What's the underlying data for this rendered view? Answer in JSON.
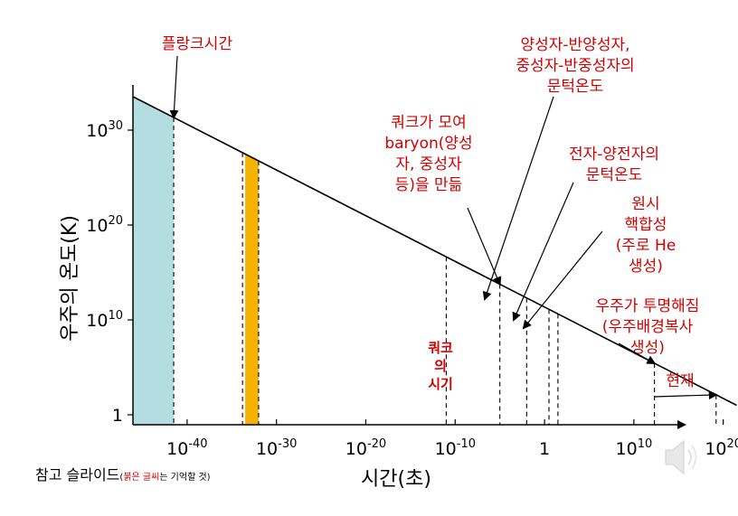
{
  "chart_data": {
    "type": "line",
    "x_scale": "log",
    "y_scale": "log",
    "xlabel": "시간(초)",
    "ylabel": "우주의 온도(K)",
    "x_ticks": [
      {
        "value": -40,
        "base": "10",
        "exp": "-40"
      },
      {
        "value": -30,
        "base": "10",
        "exp": "-30"
      },
      {
        "value": -20,
        "base": "10",
        "exp": "-20"
      },
      {
        "value": -10,
        "base": "10",
        "exp": "-10"
      },
      {
        "value": 0,
        "base": "1",
        "exp": ""
      },
      {
        "value": 10,
        "base": "10",
        "exp": "10"
      },
      {
        "value": 20,
        "base": "10",
        "exp": "20"
      }
    ],
    "y_ticks": [
      {
        "value": 0,
        "base": "1",
        "exp": ""
      },
      {
        "value": 10,
        "base": "10",
        "exp": "10"
      },
      {
        "value": 20,
        "base": "10",
        "exp": "20"
      },
      {
        "value": 30,
        "base": "10",
        "exp": "30"
      }
    ],
    "xlim": [
      -46,
      21.5
    ],
    "ylim": [
      -1,
      32
    ],
    "series": [
      {
        "x": [
          -46,
          21.5
        ],
        "y": [
          33.5,
          1.0
        ]
      }
    ],
    "shaded_regions": [
      {
        "x_from": -46,
        "x_to": -41.5,
        "color": "#b3dde0"
      },
      {
        "x_from": -33.5,
        "x_to": -32,
        "color": "#f5b300"
      }
    ],
    "events": [
      {
        "x": -41.5,
        "lines": [
          "플랑크시간"
        ]
      },
      {
        "x": -33.8,
        "lines": []
      },
      {
        "x": -32,
        "lines": []
      },
      {
        "x": -11,
        "lines": []
      },
      {
        "x": -5,
        "lines": [
          "쿼크가 모여",
          "baryon(양성",
          "자, 중성자",
          "등)을 만듦"
        ]
      },
      {
        "x": -2,
        "lines": [
          "양성자-반양성자,",
          "중성자-반중성자의",
          "문턱온도"
        ]
      },
      {
        "x": 0.5,
        "lines": [
          "전자-양전자의",
          "문턱온도"
        ]
      },
      {
        "x": 1.5,
        "lines": [
          "원시",
          "핵합성",
          "(주로 He",
          "생성)"
        ]
      },
      {
        "x": 12.3,
        "lines": [
          "우주가 투명해짐",
          "(우주배경복사",
          "생성)"
        ]
      },
      {
        "x": 19.2,
        "lines": [
          "현재"
        ]
      }
    ],
    "era_label": [
      "쿼크",
      "의",
      "시기"
    ]
  },
  "footnote": {
    "main": "참고 슬라이드",
    "paren_open": "(",
    "red_part": "붉은 글씨",
    "rest": "는 기억할 것)"
  },
  "icons": {
    "speaker": "speaker-icon"
  },
  "colors": {
    "annotation": "#d40000",
    "shade_planck": "#b3dde0",
    "shade_gut": "#f5b300"
  }
}
